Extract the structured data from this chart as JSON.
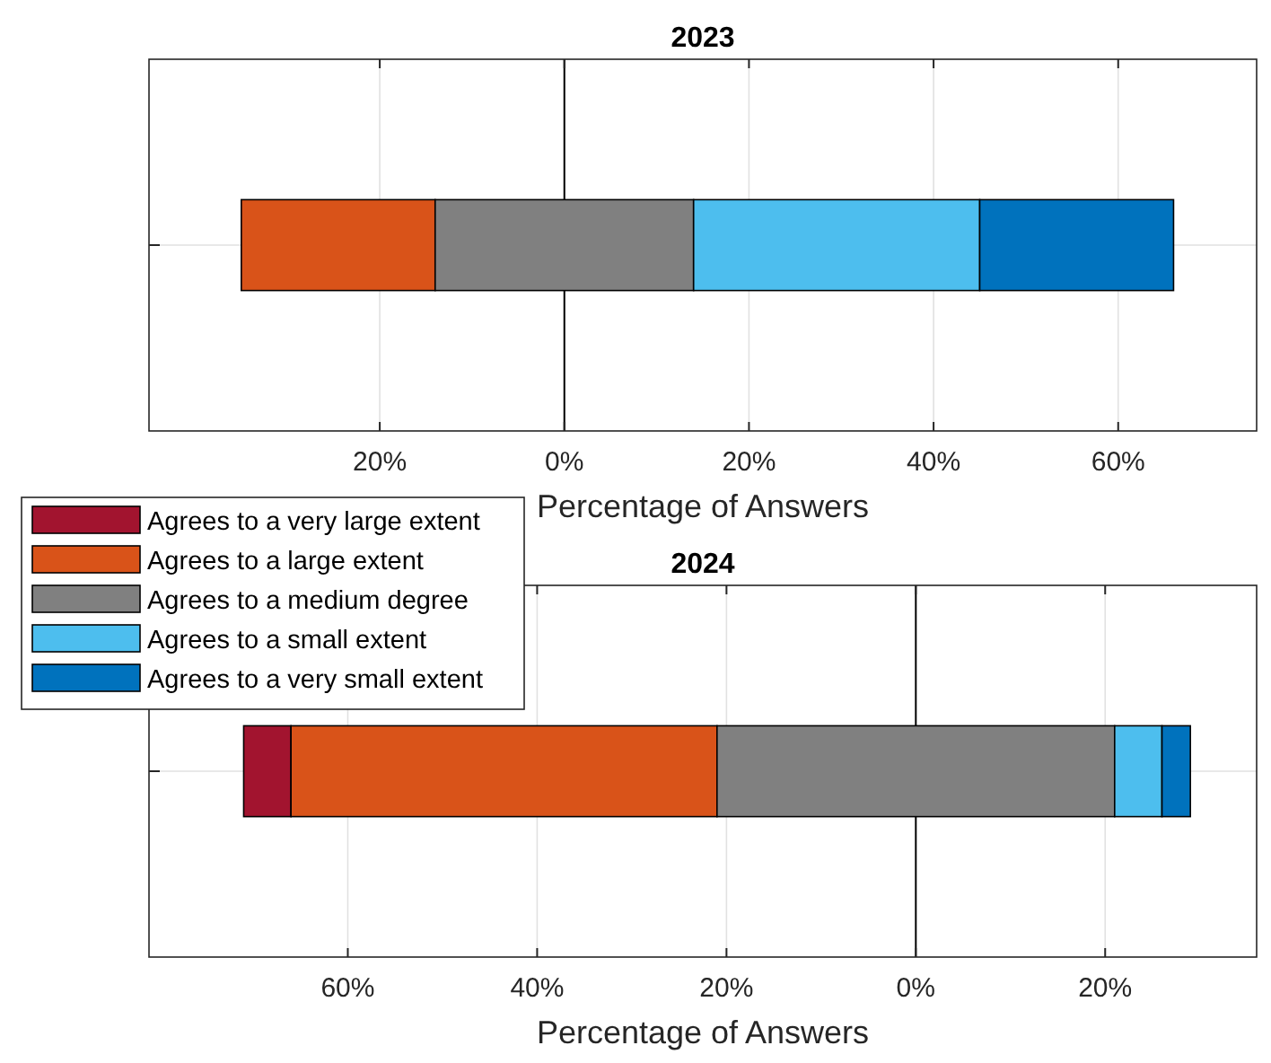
{
  "chart_data": [
    {
      "type": "bar",
      "orientation": "horizontal",
      "title": "2023",
      "xlabel": "Percentage of Answers",
      "categories": [
        null
      ],
      "xlim": [
        -45,
        75
      ],
      "xticks": [
        {
          "value": -20,
          "label": "20%"
        },
        {
          "value": 0,
          "label": "0%"
        },
        {
          "value": 20,
          "label": "20%"
        },
        {
          "value": 40,
          "label": "40%"
        },
        {
          "value": 60,
          "label": "60%"
        }
      ],
      "grid": true,
      "legend": "bottom left",
      "series": [
        {
          "name": "Agrees to a very large extent",
          "color": "#a2142f",
          "values": [
            null
          ],
          "base": [
            null
          ]
        },
        {
          "name": "Agrees to a large extent",
          "color": "#d95319",
          "values": [
            21
          ],
          "base": [
            -35
          ]
        },
        {
          "name": "Agrees to a medium degree",
          "color": "#808080",
          "values": [
            28
          ],
          "base": [
            -14
          ]
        },
        {
          "name": "Agrees to a small extent",
          "color": "#4dbeee",
          "values": [
            31
          ],
          "base": [
            14
          ]
        },
        {
          "name": "Agrees to a very small extent",
          "color": "#0072bd",
          "values": [
            21
          ],
          "base": [
            45
          ]
        }
      ]
    },
    {
      "type": "bar",
      "orientation": "horizontal",
      "title": "2024",
      "xlabel": "Percentage of Answers",
      "categories": [
        null
      ],
      "xlim": [
        -81,
        36
      ],
      "xticks": [
        {
          "value": -60,
          "label": "60%"
        },
        {
          "value": -40,
          "label": "40%"
        },
        {
          "value": -20,
          "label": "20%"
        },
        {
          "value": 0,
          "label": "0%"
        },
        {
          "value": 20,
          "label": "20%"
        }
      ],
      "grid": true,
      "series": [
        {
          "color": "#a2142f",
          "values": [
            5
          ],
          "base": [
            -71
          ]
        },
        {
          "color": "#d95319",
          "values": [
            45
          ],
          "base": [
            -66
          ]
        },
        {
          "color": "#808080",
          "values": [
            42
          ],
          "base": [
            -21
          ]
        },
        {
          "color": "#4dbeee",
          "values": [
            5
          ],
          "base": [
            21
          ]
        },
        {
          "color": "#0072bd",
          "values": [
            3
          ],
          "base": [
            26
          ]
        }
      ]
    }
  ]
}
